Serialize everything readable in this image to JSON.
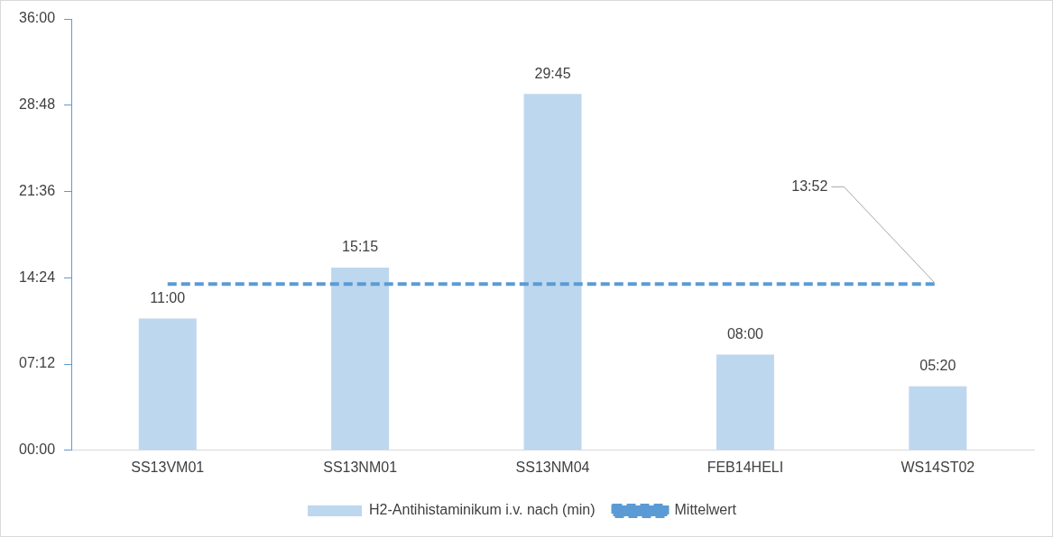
{
  "chart_data": {
    "type": "bar",
    "categories": [
      "SS13VM01",
      "SS13NM01",
      "SS13NM04",
      "FEB14HELI",
      "WS14ST02"
    ],
    "series": [
      {
        "name": "H2-Antihistaminikum i.v. nach (min)",
        "color": "#bdd7ee",
        "values": [
          11,
          15.25,
          29.75,
          8,
          5.333
        ],
        "value_labels": [
          "11:00",
          "15:15",
          "29:45",
          "08:00",
          "05:20"
        ]
      },
      {
        "name": "Mittelwert",
        "type": "line",
        "color": "#5b9bd5",
        "line_style": "dashed",
        "marker": "none",
        "values": [
          13.87,
          13.87,
          13.87,
          13.87,
          13.87
        ],
        "value_labels": [
          null,
          null,
          null,
          null,
          "13:52"
        ]
      }
    ],
    "ylim": [
      0,
      36
    ],
    "yticks": [
      {
        "value": 0,
        "label": "00:00"
      },
      {
        "value": 7.2,
        "label": "07:12"
      },
      {
        "value": 14.4,
        "label": "14:24"
      },
      {
        "value": 21.6,
        "label": "21:36"
      },
      {
        "value": 28.8,
        "label": "28:48"
      },
      {
        "value": 36,
        "label": "36:00"
      }
    ],
    "grid": false,
    "legend": "bottom"
  }
}
